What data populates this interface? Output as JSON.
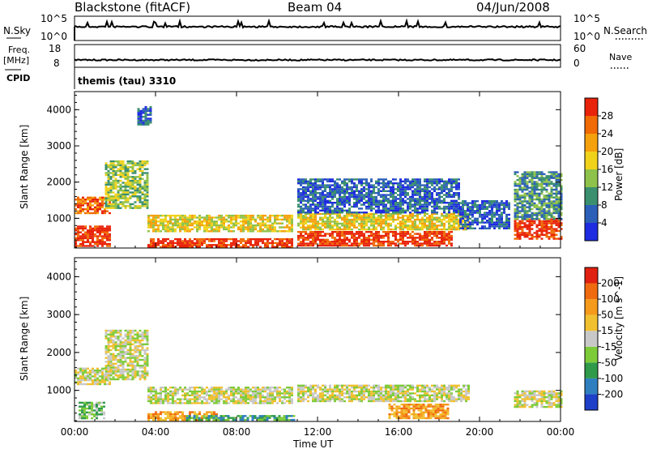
{
  "header": {
    "station": "Blackstone (fitACF)",
    "beam": "Beam 04",
    "date": "04/Jun/2008"
  },
  "control_panels": {
    "nsky_label": "N.Sky",
    "nsky_ticks": [
      "10^5",
      "10^0"
    ],
    "nsearch_label": "N.Search",
    "nsearch_ticks": [
      "10^5",
      "10^0"
    ],
    "freq_label_1": "Freq.",
    "freq_label_2": "[MHz]",
    "freq_ticks": [
      "18",
      "8"
    ],
    "nave_label": "Nave",
    "nave_ticks": [
      "60",
      "0"
    ],
    "cpid_label": "CPID",
    "cpid_value": "themis (tau) 3310"
  },
  "chart_data": [
    {
      "type": "heatmap",
      "name_printed": "",
      "xlabel": "",
      "ylabel": "Slant Range [km]",
      "x_range_hours": [
        0,
        24
      ],
      "ylim": [
        180,
        4500
      ],
      "yticks": [
        "1000",
        "2000",
        "3000",
        "4000"
      ],
      "colorbar": {
        "label": "Power [dB]",
        "ticks": [
          "4",
          "8",
          "12",
          "16",
          "20",
          "24",
          "28"
        ],
        "colors": [
          "#1e2be0",
          "#2c5fb8",
          "#3a8f6e",
          "#8fc24a",
          "#f0d21a",
          "#f5a10d",
          "#f06a05",
          "#e8230a"
        ]
      },
      "echo_regions": [
        {
          "from_hour": 0.0,
          "to_hour": 1.8,
          "range_from_km": 250,
          "range_to_km": 800,
          "level": 7
        },
        {
          "from_hour": 0.0,
          "to_hour": 1.8,
          "range_from_km": 1150,
          "range_to_km": 1600,
          "level": 6
        },
        {
          "from_hour": 1.5,
          "to_hour": 3.6,
          "range_from_km": 1300,
          "range_to_km": 2600,
          "level": 3
        },
        {
          "from_hour": 3.1,
          "to_hour": 3.8,
          "range_from_km": 3600,
          "range_to_km": 4100,
          "level": 1
        },
        {
          "from_hour": 3.6,
          "to_hour": 10.8,
          "range_from_km": 650,
          "range_to_km": 1100,
          "level": 4
        },
        {
          "from_hour": 3.6,
          "to_hour": 10.8,
          "range_from_km": 200,
          "range_to_km": 450,
          "level": 7
        },
        {
          "from_hour": 11.0,
          "to_hour": 19.5,
          "range_from_km": 700,
          "range_to_km": 1150,
          "level": 4
        },
        {
          "from_hour": 11.0,
          "to_hour": 18.6,
          "range_from_km": 250,
          "range_to_km": 650,
          "level": 7
        },
        {
          "from_hour": 11.0,
          "to_hour": 19.0,
          "range_from_km": 1150,
          "range_to_km": 2100,
          "level": 1
        },
        {
          "from_hour": 19.0,
          "to_hour": 21.5,
          "range_from_km": 700,
          "range_to_km": 1500,
          "level": 1
        },
        {
          "from_hour": 21.7,
          "to_hour": 24.0,
          "range_from_km": 450,
          "range_to_km": 1000,
          "level": 7
        },
        {
          "from_hour": 21.7,
          "to_hour": 24.0,
          "range_from_km": 1000,
          "range_to_km": 2300,
          "level": 2
        }
      ]
    },
    {
      "type": "heatmap",
      "name_printed": "",
      "xlabel": "Time UT",
      "ylabel": "Slant Range [km]",
      "x_range_hours": [
        0,
        24
      ],
      "ylim": [
        180,
        4500
      ],
      "yticks": [
        "1000",
        "2000",
        "3000",
        "4000"
      ],
      "xticks": [
        "00:00",
        "04:00",
        "08:00",
        "12:00",
        "16:00",
        "20:00",
        "00:00"
      ],
      "colorbar": {
        "label": "Velocity [m s^-1]",
        "ticks": [
          "200",
          "100",
          "50",
          "15",
          "-15",
          "-50",
          "-100",
          "-200"
        ],
        "colors": [
          "#1e3fc8",
          "#2f7fc0",
          "#2f9a4a",
          "#7ecb3a",
          "#c8c8c8",
          "#f0c030",
          "#f59a1a",
          "#f06a10",
          "#e02010"
        ]
      },
      "echo_regions": [
        {
          "from_hour": 0.0,
          "to_hour": 1.8,
          "range_from_km": 1150,
          "range_to_km": 1600,
          "level": 4
        },
        {
          "from_hour": 1.5,
          "to_hour": 3.6,
          "range_from_km": 1300,
          "range_to_km": 2600,
          "level": 4
        },
        {
          "from_hour": 0.2,
          "to_hour": 1.5,
          "range_from_km": 250,
          "range_to_km": 700,
          "level": 3
        },
        {
          "from_hour": 3.6,
          "to_hour": 10.8,
          "range_from_km": 650,
          "range_to_km": 1100,
          "level": 4
        },
        {
          "from_hour": 3.6,
          "to_hour": 7.0,
          "range_from_km": 200,
          "range_to_km": 450,
          "level": 6
        },
        {
          "from_hour": 5.5,
          "to_hour": 10.8,
          "range_from_km": 200,
          "range_to_km": 350,
          "level": 2
        },
        {
          "from_hour": 11.0,
          "to_hour": 19.5,
          "range_from_km": 700,
          "range_to_km": 1150,
          "level": 4
        },
        {
          "from_hour": 15.5,
          "to_hour": 18.5,
          "range_from_km": 250,
          "range_to_km": 650,
          "level": 6
        },
        {
          "from_hour": 21.7,
          "to_hour": 24.0,
          "range_from_km": 550,
          "range_to_km": 1000,
          "level": 4
        }
      ]
    }
  ]
}
